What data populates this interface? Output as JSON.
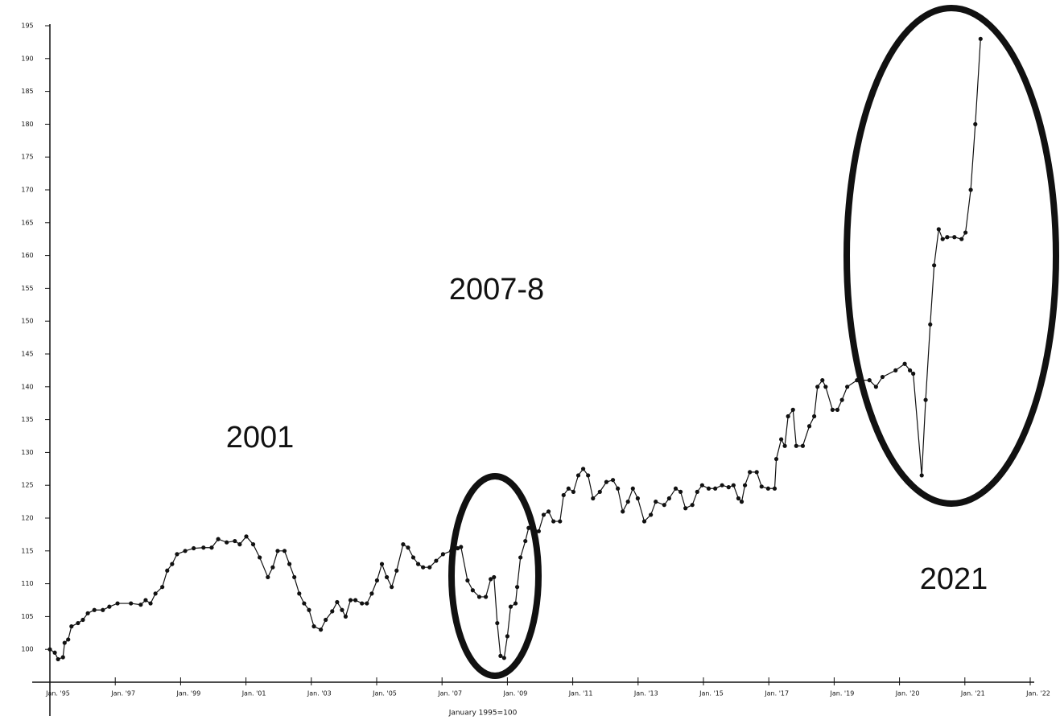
{
  "chart_data": {
    "type": "line",
    "xlabel": "January 1995=100",
    "annotations": [
      "2001",
      "2007-8",
      "2021"
    ],
    "color": "#111111",
    "grid": false,
    "ylim": [
      95,
      195
    ],
    "yticks": [
      100,
      105,
      110,
      115,
      120,
      125,
      130,
      135,
      140,
      145,
      150,
      155,
      160,
      165,
      170,
      175,
      180,
      185,
      190,
      195
    ],
    "xlim": [
      1995,
      2022
    ],
    "xticks": [
      {
        "value": 1995,
        "label": "Jan. '95"
      },
      {
        "value": 1997,
        "label": "Jan. '97"
      },
      {
        "value": 1999,
        "label": "Jan. '99"
      },
      {
        "value": 2001,
        "label": "Jan. '01"
      },
      {
        "value": 2003,
        "label": "Jan. '03"
      },
      {
        "value": 2005,
        "label": "Jan. '05"
      },
      {
        "value": 2007,
        "label": "Jan. '07"
      },
      {
        "value": 2009,
        "label": "Jan. '09"
      },
      {
        "value": 2011,
        "label": "Jan. '11"
      },
      {
        "value": 2013,
        "label": "Jan. '13"
      },
      {
        "value": 2015,
        "label": "Jan. '15"
      },
      {
        "value": 2017,
        "label": "Jan. '17"
      },
      {
        "value": 2019,
        "label": "Jan. '19"
      },
      {
        "value": 2020,
        "label": "Jan. '20"
      },
      {
        "value": 2021,
        "label": "Jan. '21"
      },
      {
        "value": 2022,
        "label": "Jan. '22"
      }
    ],
    "x": [
      1995.0,
      1995.15,
      1995.25,
      1995.4,
      1995.45,
      1995.56,
      1995.66,
      1995.86,
      1996.01,
      1996.16,
      1996.36,
      1996.62,
      1996.82,
      1997.07,
      1997.48,
      1997.78,
      1997.93,
      1998.08,
      1998.23,
      1998.44,
      1998.59,
      1998.74,
      1998.89,
      1999.14,
      1999.4,
      1999.7,
      1999.95,
      2000.15,
      2000.41,
      2000.66,
      2000.81,
      2001.01,
      2001.22,
      2001.42,
      2001.67,
      2001.82,
      2001.97,
      2002.18,
      2002.33,
      2002.48,
      2002.63,
      2002.78,
      2002.93,
      2003.08,
      2003.29,
      2003.44,
      2003.64,
      2003.79,
      2003.94,
      2004.05,
      2004.2,
      2004.35,
      2004.55,
      2004.7,
      2004.85,
      2005.01,
      2005.16,
      2005.31,
      2005.46,
      2005.61,
      2005.81,
      2005.96,
      2006.12,
      2006.27,
      2006.42,
      2006.62,
      2006.82,
      2007.03,
      2007.28,
      2007.48,
      2007.58,
      2007.78,
      2007.94,
      2008.14,
      2008.34,
      2008.49,
      2008.59,
      2008.69,
      2008.79,
      2008.9,
      2009.0,
      2009.1,
      2009.25,
      2009.3,
      2009.4,
      2009.55,
      2009.65,
      2009.81,
      2009.96,
      2010.11,
      2010.26,
      2010.41,
      2010.61,
      2010.72,
      2010.87,
      2011.02,
      2011.17,
      2011.32,
      2011.47,
      2011.62,
      2011.83,
      2012.03,
      2012.23,
      2012.38,
      2012.53,
      2012.69,
      2012.84,
      2012.99,
      2013.19,
      2013.39,
      2013.54,
      2013.8,
      2013.95,
      2014.15,
      2014.3,
      2014.45,
      2014.66,
      2014.81,
      2014.96,
      2015.16,
      2015.36,
      2015.57,
      2015.77,
      2015.92,
      2016.07,
      2016.17,
      2016.27,
      2016.42,
      2016.63,
      2016.78,
      2016.98,
      2017.18,
      2017.23,
      2017.38,
      2017.49,
      2017.59,
      2017.74,
      2017.84,
      2018.04,
      2018.24,
      2018.39,
      2018.49,
      2018.64,
      2018.74,
      2018.95,
      2019.05,
      2019.12,
      2019.2,
      2019.35,
      2019.54,
      2019.64,
      2019.74,
      2019.94,
      2020.08,
      2020.16,
      2020.21,
      2020.34,
      2020.4,
      2020.47,
      2020.53,
      2020.6,
      2020.66,
      2020.73,
      2020.84,
      2020.95,
      2021.01,
      2021.09,
      2021.16,
      2021.24
    ],
    "values": [
      100,
      99.5,
      98.5,
      98.8,
      101,
      101.5,
      103.5,
      104,
      104.5,
      105.5,
      106,
      106,
      106.5,
      107,
      107,
      106.8,
      107.5,
      107,
      108.5,
      109.5,
      112,
      113,
      114.5,
      115,
      115.4,
      115.5,
      115.5,
      116.8,
      116.3,
      116.5,
      116,
      117.2,
      116,
      114,
      111,
      112.5,
      115,
      115,
      113,
      111,
      108.5,
      107,
      106,
      103.5,
      103,
      104.5,
      105.8,
      107.2,
      106,
      105,
      107.5,
      107.5,
      107,
      107,
      108.5,
      110.5,
      113,
      111,
      109.5,
      112,
      116,
      115.5,
      114,
      113,
      112.5,
      112.5,
      113.5,
      114.5,
      115,
      115.4,
      115.6,
      110.5,
      109,
      108,
      108,
      110.7,
      111,
      104,
      99,
      98.7,
      102,
      106.5,
      107,
      109.5,
      114,
      116.5,
      118.5,
      118,
      118,
      120.5,
      121,
      119.5,
      119.5,
      123.5,
      124.5,
      124,
      126.5,
      127.5,
      126.5,
      123,
      124,
      125.5,
      125.8,
      124.5,
      121,
      122.5,
      124.5,
      123,
      119.5,
      120.5,
      122.5,
      122,
      123,
      124.5,
      124,
      121.5,
      122,
      124,
      125,
      124.5,
      124.5,
      125,
      124.7,
      125,
      123,
      122.5,
      125,
      127,
      127,
      124.8,
      124.5,
      124.5,
      129,
      132,
      131,
      135.5,
      136.5,
      131,
      131,
      134,
      135.5,
      140,
      141,
      140,
      136.5,
      136.5,
      138,
      140,
      141,
      141,
      140,
      141.5,
      142.5,
      143.5,
      142.5,
      142,
      126.5,
      138,
      149.5,
      158.5,
      164,
      162.5,
      162.8,
      162.8,
      162.5,
      163.5,
      170,
      180,
      193
    ]
  }
}
